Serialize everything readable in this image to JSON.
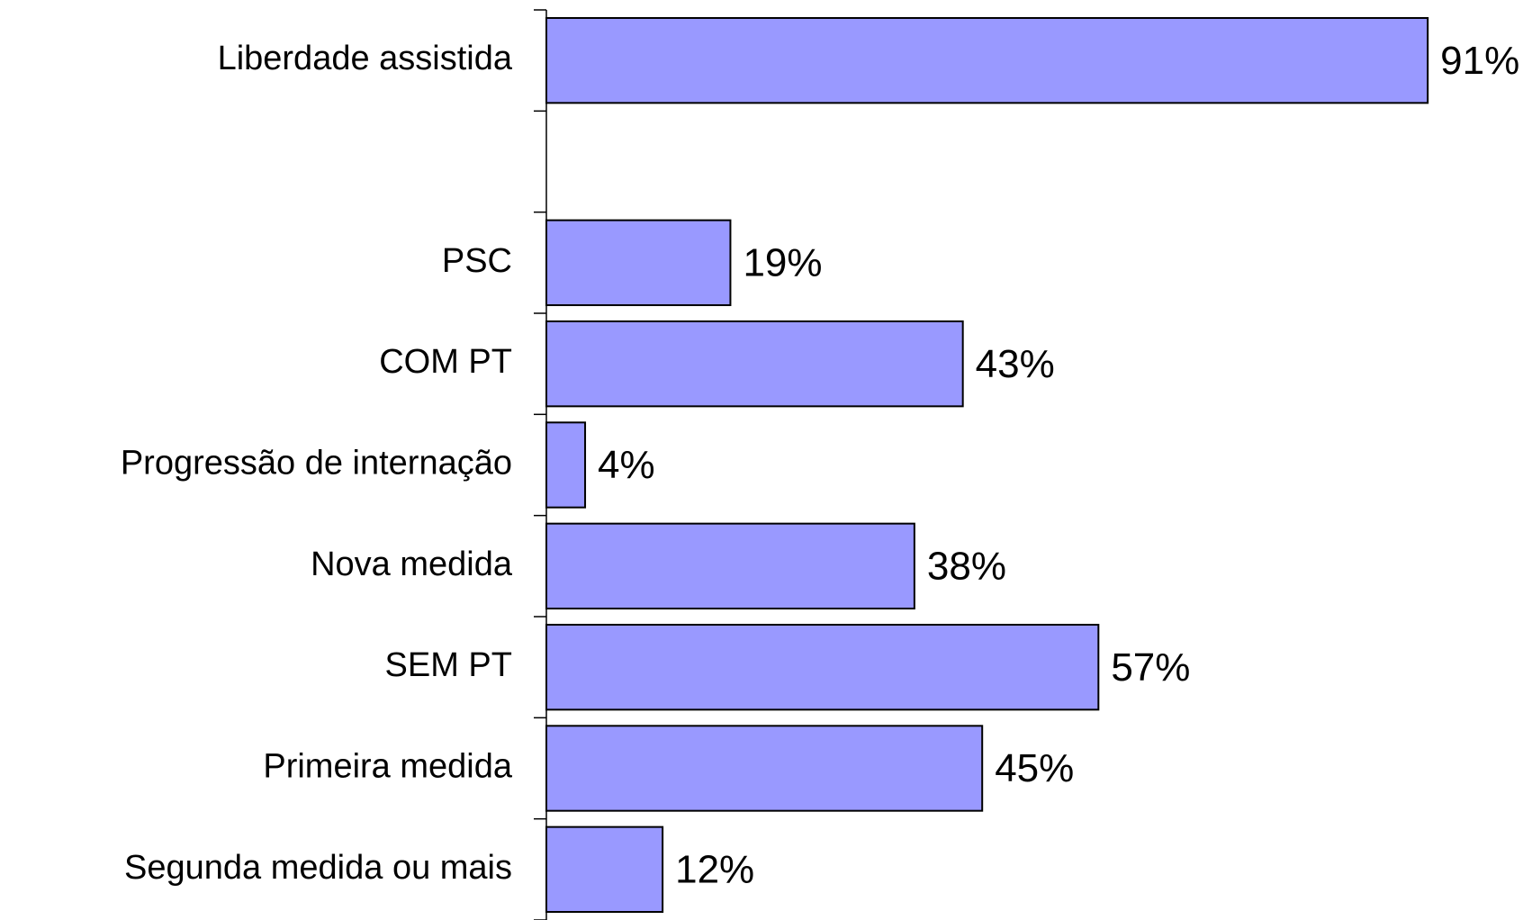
{
  "chart_data": {
    "type": "barh",
    "categories": [
      "Liberdade assistida",
      null,
      "PSC",
      "COM PT",
      "Progressão de internação",
      "Nova medida",
      "SEM PT",
      "Primeira medida",
      "Segunda medida ou mais"
    ],
    "values": [
      91,
      null,
      19,
      43,
      4,
      38,
      57,
      45,
      12
    ],
    "value_labels": [
      "91%",
      null,
      "19%",
      "43%",
      "4%",
      "38%",
      "57%",
      "45%",
      "12%"
    ],
    "color": "#9999ff",
    "xlim": [
      0,
      100
    ]
  }
}
